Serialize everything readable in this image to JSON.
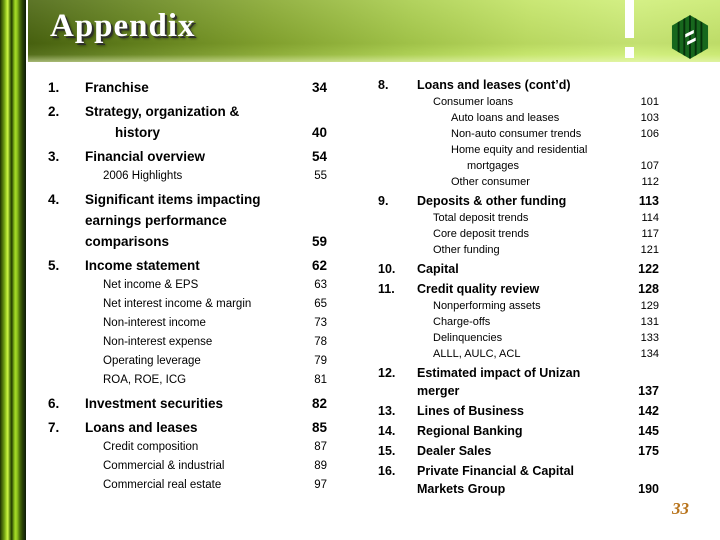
{
  "slide": {
    "title": "Appendix",
    "page_number": "33"
  },
  "logo": {
    "name": "huntington-hexagon-logo",
    "hex_fill": "#17671d",
    "stripe_color": "#06310b",
    "mark_color": "#ffffff"
  },
  "colors": {
    "header_gradient_dark": "#4a650f",
    "header_gradient_light": "#cfee78",
    "stripe_bright": "#cdf248",
    "title_text": "#ffffff",
    "body_text": "#000000",
    "page_number_text": "#b8731b",
    "background": "#ffffff"
  },
  "toc_left": [
    {
      "num": "1.",
      "text": "Franchise",
      "page": "34",
      "style": "main",
      "indent": 0
    },
    {
      "num": "2.",
      "text": "Strategy, organization &",
      "page": "",
      "style": "main",
      "indent": 0
    },
    {
      "num": "",
      "text": "history",
      "page": "40",
      "style": "main",
      "indent": 1
    },
    {
      "num": "3.",
      "text": "Financial overview",
      "page": "54",
      "style": "main",
      "indent": 0
    },
    {
      "num": "",
      "text": "2006 Highlights",
      "page": "55",
      "style": "sub",
      "indent": 0
    },
    {
      "num": "4.",
      "text": "Significant items impacting",
      "page": "",
      "style": "main",
      "indent": 0
    },
    {
      "num": "",
      "text": "earnings performance",
      "page": "",
      "style": "main",
      "indent": 0
    },
    {
      "num": "",
      "text": "comparisons",
      "page": "59",
      "style": "main",
      "indent": 0
    },
    {
      "num": "5.",
      "text": "Income statement",
      "page": "62",
      "style": "main",
      "indent": 0
    },
    {
      "num": "",
      "text": "Net income & EPS",
      "page": "63",
      "style": "sub",
      "indent": 0
    },
    {
      "num": "",
      "text": "Net interest income & margin",
      "page": "65",
      "style": "sub",
      "indent": 0
    },
    {
      "num": "",
      "text": "Non-interest income",
      "page": "73",
      "style": "sub",
      "indent": 0
    },
    {
      "num": "",
      "text": "Non-interest expense",
      "page": "78",
      "style": "sub",
      "indent": 0
    },
    {
      "num": "",
      "text": "Operating leverage",
      "page": "79",
      "style": "sub",
      "indent": 0
    },
    {
      "num": "",
      "text": "ROA, ROE, ICG",
      "page": "81",
      "style": "sub",
      "indent": 0
    },
    {
      "num": "6.",
      "text": "Investment securities",
      "page": "82",
      "style": "main",
      "indent": 0
    },
    {
      "num": "7.",
      "text": "Loans and leases",
      "page": "85",
      "style": "main",
      "indent": 0
    },
    {
      "num": "",
      "text": "Credit composition",
      "page": "87",
      "style": "sub",
      "indent": 0
    },
    {
      "num": "",
      "text": "Commercial & industrial",
      "page": "89",
      "style": "sub",
      "indent": 0
    },
    {
      "num": "",
      "text": "Commercial real estate",
      "page": "97",
      "style": "sub",
      "indent": 0
    }
  ],
  "toc_right": [
    {
      "num": "8.",
      "text": "Loans and leases (cont’d)",
      "page": "",
      "style": "main",
      "indent": 0
    },
    {
      "num": "",
      "text": "Consumer loans",
      "page": "101",
      "style": "sub",
      "indent": 0
    },
    {
      "num": "",
      "text": "Auto loans and leases",
      "page": "103",
      "style": "sub",
      "indent": 1
    },
    {
      "num": "",
      "text": "Non-auto consumer trends",
      "page": "106",
      "style": "sub",
      "indent": 1
    },
    {
      "num": "",
      "text": "Home equity and residential",
      "page": "",
      "style": "sub",
      "indent": 1
    },
    {
      "num": "",
      "text": "mortgages",
      "page": "107",
      "style": "sub",
      "indent": 2
    },
    {
      "num": "",
      "text": "Other consumer",
      "page": "112",
      "style": "sub",
      "indent": 1
    },
    {
      "num": "9.",
      "text": "Deposits & other funding",
      "page": "113",
      "style": "main",
      "indent": 0
    },
    {
      "num": "",
      "text": "Total deposit trends",
      "page": "114",
      "style": "sub",
      "indent": 0
    },
    {
      "num": "",
      "text": "Core deposit trends",
      "page": "117",
      "style": "sub",
      "indent": 0
    },
    {
      "num": "",
      "text": "Other funding",
      "page": "121",
      "style": "sub",
      "indent": 0
    },
    {
      "num": "10.",
      "text": "Capital",
      "page": "122",
      "style": "main",
      "indent": 0
    },
    {
      "num": "11.",
      "text": "Credit quality review",
      "page": "128",
      "style": "main",
      "indent": 0
    },
    {
      "num": "",
      "text": "Nonperforming assets",
      "page": "129",
      "style": "sub",
      "indent": 0
    },
    {
      "num": "",
      "text": "Charge-offs",
      "page": "131",
      "style": "sub",
      "indent": 0
    },
    {
      "num": "",
      "text": "Delinquencies",
      "page": "133",
      "style": "sub",
      "indent": 0
    },
    {
      "num": "",
      "text": "ALLL, AULC, ACL",
      "page": "134",
      "style": "sub",
      "indent": 0
    },
    {
      "num": "12.",
      "text": "Estimated impact of Unizan",
      "page": "",
      "style": "main",
      "indent": 0
    },
    {
      "num": "",
      "text": "merger",
      "page": "137",
      "style": "main",
      "indent": 0
    },
    {
      "num": "13.",
      "text": "Lines of Business",
      "page": "142",
      "style": "main",
      "indent": 0
    },
    {
      "num": "14.",
      "text": "Regional Banking",
      "page": "145",
      "style": "main",
      "indent": 0
    },
    {
      "num": "15.",
      "text": "Dealer Sales",
      "page": "175",
      "style": "main",
      "indent": 0
    },
    {
      "num": "16.",
      "text": "Private Financial & Capital",
      "page": "",
      "style": "main",
      "indent": 0
    },
    {
      "num": "",
      "text": "Markets Group",
      "page": "190",
      "style": "main",
      "indent": 0
    }
  ]
}
